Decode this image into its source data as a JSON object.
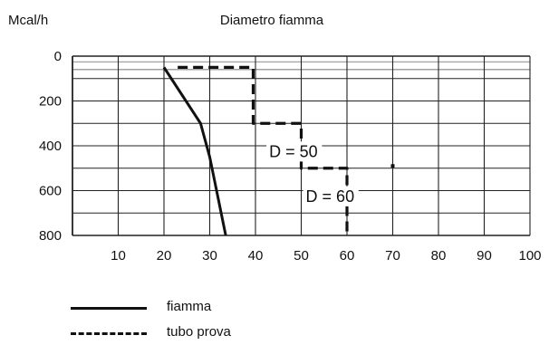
{
  "chart_data": {
    "type": "line",
    "title": "Diametro fiamma",
    "ylabel": "Mcal/h",
    "xlabel": "",
    "xlim": [
      0,
      100
    ],
    "ylim": [
      0,
      800
    ],
    "y_inverted": true,
    "x_ticks": [
      10,
      20,
      30,
      40,
      50,
      60,
      70,
      80,
      90,
      100
    ],
    "y_ticks": [
      0,
      200,
      400,
      600,
      800
    ],
    "grid": true,
    "series": [
      {
        "name": "fiamma",
        "style": "solid",
        "color": "#111111",
        "points": [
          [
            20,
            50
          ],
          [
            28,
            300
          ],
          [
            30,
            450
          ],
          [
            33.5,
            800
          ]
        ]
      },
      {
        "name": "tubo prova",
        "style": "dashed",
        "color": "#111111",
        "points": [
          [
            23,
            50
          ],
          [
            39.5,
            50
          ],
          [
            39.5,
            300
          ],
          [
            50,
            300
          ],
          [
            50,
            500
          ],
          [
            60,
            500
          ],
          [
            60,
            800
          ]
        ]
      }
    ],
    "annotations": [
      {
        "text": "D = 50",
        "x": 43,
        "y": 450
      },
      {
        "text": "D = 60",
        "x": 51,
        "y": 650
      }
    ],
    "markers": [
      {
        "x": 70,
        "y": 490
      }
    ]
  },
  "legend": {
    "items": [
      {
        "label": "fiamma",
        "style": "solid"
      },
      {
        "label": "tubo prova",
        "style": "dashed"
      }
    ]
  }
}
